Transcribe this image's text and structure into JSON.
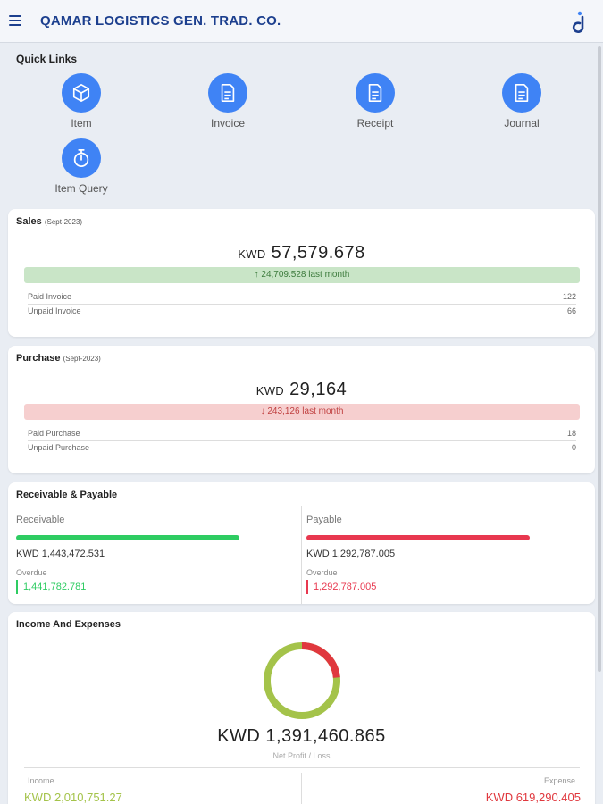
{
  "header": {
    "title": "QAMAR LOGISTICS GEN. TRAD. CO."
  },
  "quick_links": {
    "title": "Quick Links",
    "items": [
      {
        "label": "Item",
        "icon": "cube-icon"
      },
      {
        "label": "Invoice",
        "icon": "document-icon"
      },
      {
        "label": "Receipt",
        "icon": "document-icon"
      },
      {
        "label": "Journal",
        "icon": "document-icon"
      },
      {
        "label": "Item Query",
        "icon": "stopwatch-icon"
      }
    ]
  },
  "sales": {
    "title": "Sales",
    "period": "(Sept-2023)",
    "currency": "KWD",
    "amount": "57,579.678",
    "trend_arrow": "↑",
    "trend_text": "24,709.528 last month",
    "rows": [
      {
        "label": "Paid Invoice",
        "value": "122"
      },
      {
        "label": "Unpaid Invoice",
        "value": "66"
      }
    ]
  },
  "purchase": {
    "title": "Purchase",
    "period": "(Sept-2023)",
    "currency": "KWD",
    "amount": "29,164",
    "trend_arrow": "↓",
    "trend_text": "243,126 last month",
    "rows": [
      {
        "label": "Paid Purchase",
        "value": "18"
      },
      {
        "label": "Unpaid Purchase",
        "value": "0"
      }
    ]
  },
  "receivable_payable": {
    "title": "Receivable & Payable",
    "receivable": {
      "label": "Receivable",
      "amount": "KWD 1,443,472.531",
      "overdue_label": "Overdue",
      "overdue_amount": "1,441,782.781",
      "color": "#2ecc62"
    },
    "payable": {
      "label": "Payable",
      "amount": "KWD 1,292,787.005",
      "overdue_label": "Overdue",
      "overdue_amount": "1,292,787.005",
      "color": "#e8384f"
    }
  },
  "income_expenses": {
    "title": "Income And Expenses",
    "net_amount": "KWD 1,391,460.865",
    "net_label": "Net Profit / Loss",
    "income_label": "Income",
    "income_amount": "KWD 2,010,751.27",
    "expense_label": "Expense",
    "expense_amount": "KWD 619,290.405",
    "income_color": "#a4c34a",
    "expense_color": "#e0383e",
    "expense_share": 0.235
  }
}
